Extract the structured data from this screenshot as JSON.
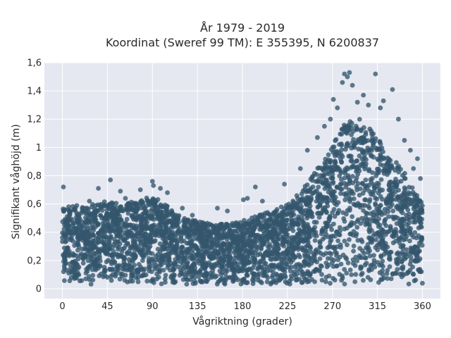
{
  "chart_data": {
    "type": "scatter",
    "title_line1": "År 1979 - 2019",
    "title_line2": "Koordinat (Sweref 99 TM): E 355395, N 6200837",
    "xlabel": "Vågriktning (grader)",
    "ylabel": "Signifikant våghöjd (m)",
    "xlim": [
      -18,
      378
    ],
    "ylim": [
      -0.07,
      1.6
    ],
    "xticks": [
      0,
      45,
      90,
      135,
      180,
      225,
      270,
      315,
      360
    ],
    "xtick_labels": [
      "0",
      "45",
      "90",
      "135",
      "180",
      "225",
      "270",
      "315",
      "360"
    ],
    "yticks": [
      0,
      0.2,
      0.4,
      0.6,
      0.8,
      1,
      1.2,
      1.4,
      1.6
    ],
    "ytick_labels": [
      "0",
      "0,2",
      "0,4",
      "0,6",
      "0,8",
      "1",
      "1,2",
      "1,4",
      "1,6"
    ],
    "grid": true,
    "colors": {
      "marker": "#33566d",
      "plot_bg": "#e5e8f0",
      "grid": "#ffffff"
    },
    "envelope": {
      "direction": [
        0,
        10,
        20,
        30,
        45,
        60,
        75,
        90,
        100,
        110,
        120,
        135,
        150,
        165,
        180,
        195,
        210,
        225,
        240,
        250,
        260,
        270,
        280,
        290,
        300,
        310,
        320,
        330,
        340,
        350,
        360
      ],
      "max_height": [
        0.58,
        0.6,
        0.58,
        0.6,
        0.62,
        0.6,
        0.63,
        0.65,
        0.62,
        0.55,
        0.5,
        0.48,
        0.46,
        0.46,
        0.48,
        0.52,
        0.55,
        0.6,
        0.7,
        0.8,
        0.9,
        1.02,
        1.15,
        1.22,
        1.2,
        1.12,
        1.02,
        0.92,
        0.85,
        0.72,
        0.6
      ]
    },
    "outliers": [
      {
        "x": 1,
        "y": 0.72
      },
      {
        "x": 27,
        "y": 0.62
      },
      {
        "x": 36,
        "y": 0.71
      },
      {
        "x": 48,
        "y": 0.77
      },
      {
        "x": 58,
        "y": 0.69
      },
      {
        "x": 63,
        "y": 0.64
      },
      {
        "x": 78,
        "y": 0.7
      },
      {
        "x": 90,
        "y": 0.76
      },
      {
        "x": 91,
        "y": 0.73
      },
      {
        "x": 98,
        "y": 0.71
      },
      {
        "x": 105,
        "y": 0.68
      },
      {
        "x": 120,
        "y": 0.57
      },
      {
        "x": 130,
        "y": 0.52
      },
      {
        "x": 155,
        "y": 0.57
      },
      {
        "x": 165,
        "y": 0.55
      },
      {
        "x": 181,
        "y": 0.63
      },
      {
        "x": 185,
        "y": 0.64
      },
      {
        "x": 193,
        "y": 0.72
      },
      {
        "x": 200,
        "y": 0.62
      },
      {
        "x": 222,
        "y": 0.74
      },
      {
        "x": 238,
        "y": 0.85
      },
      {
        "x": 245,
        "y": 0.98
      },
      {
        "x": 255,
        "y": 1.07
      },
      {
        "x": 262,
        "y": 1.15
      },
      {
        "x": 268,
        "y": 1.2
      },
      {
        "x": 271,
        "y": 1.34
      },
      {
        "x": 275,
        "y": 1.28
      },
      {
        "x": 280,
        "y": 1.46
      },
      {
        "x": 282,
        "y": 1.52
      },
      {
        "x": 285,
        "y": 1.5
      },
      {
        "x": 287,
        "y": 1.53
      },
      {
        "x": 290,
        "y": 1.44
      },
      {
        "x": 295,
        "y": 1.32
      },
      {
        "x": 301,
        "y": 1.37
      },
      {
        "x": 306,
        "y": 1.3
      },
      {
        "x": 313,
        "y": 1.52
      },
      {
        "x": 318,
        "y": 1.28
      },
      {
        "x": 321,
        "y": 1.33
      },
      {
        "x": 330,
        "y": 1.41
      },
      {
        "x": 336,
        "y": 1.2
      },
      {
        "x": 342,
        "y": 1.05
      },
      {
        "x": 348,
        "y": 0.98
      },
      {
        "x": 351,
        "y": 0.85
      },
      {
        "x": 355,
        "y": 0.92
      },
      {
        "x": 358,
        "y": 0.78
      }
    ]
  }
}
